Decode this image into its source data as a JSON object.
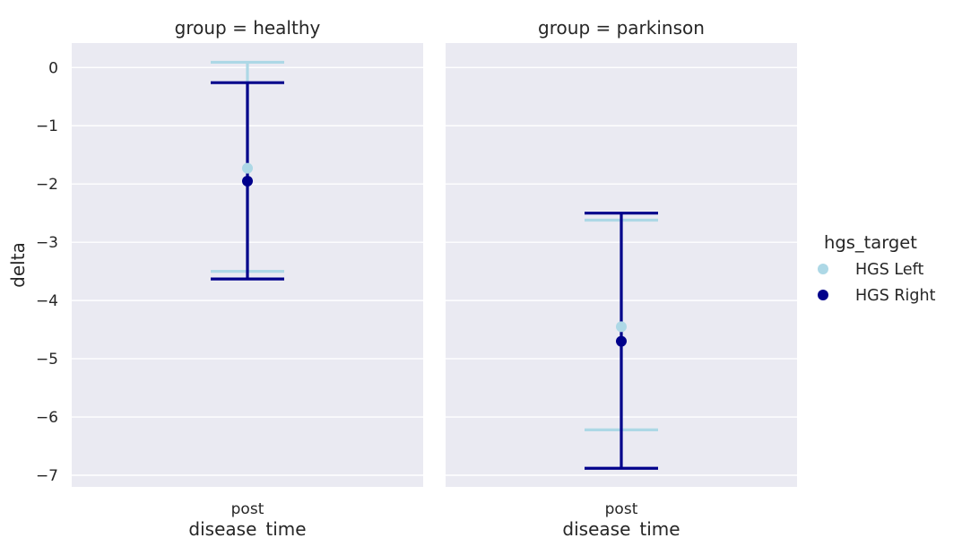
{
  "chart_data": {
    "type": "pointplot",
    "x_label": "disease_time",
    "y_label": "delta",
    "y_ticks": [
      0,
      -1,
      -2,
      -3,
      -4,
      -5,
      -6,
      -7
    ],
    "y_tick_labels": [
      "0",
      "−1",
      "−2",
      "−3",
      "−4",
      "−5",
      "−6",
      "−7"
    ],
    "ylim": [
      -7.2,
      0.42
    ],
    "categories": [
      "post"
    ],
    "grid": true,
    "legend": {
      "title": "hgs_target",
      "position": "right",
      "entries": [
        {
          "label": "HGS Left",
          "color": "#add8e6"
        },
        {
          "label": "HGS Right",
          "color": "#00008b"
        }
      ]
    },
    "facets": [
      {
        "title": "group = healthy",
        "series": [
          {
            "name": "HGS Left",
            "color": "#add8e6",
            "x": "post",
            "y": -1.73,
            "ci": [
              -3.5,
              0.09
            ]
          },
          {
            "name": "HGS Right",
            "color": "#00008b",
            "x": "post",
            "y": -1.95,
            "ci": [
              -3.63,
              -0.26
            ]
          }
        ]
      },
      {
        "title": "group = parkinson",
        "series": [
          {
            "name": "HGS Left",
            "color": "#add8e6",
            "x": "post",
            "y": -4.45,
            "ci": [
              -6.22,
              -2.62
            ]
          },
          {
            "name": "HGS Right",
            "color": "#00008b",
            "x": "post",
            "y": -4.7,
            "ci": [
              -6.88,
              -2.5
            ]
          }
        ]
      }
    ]
  }
}
